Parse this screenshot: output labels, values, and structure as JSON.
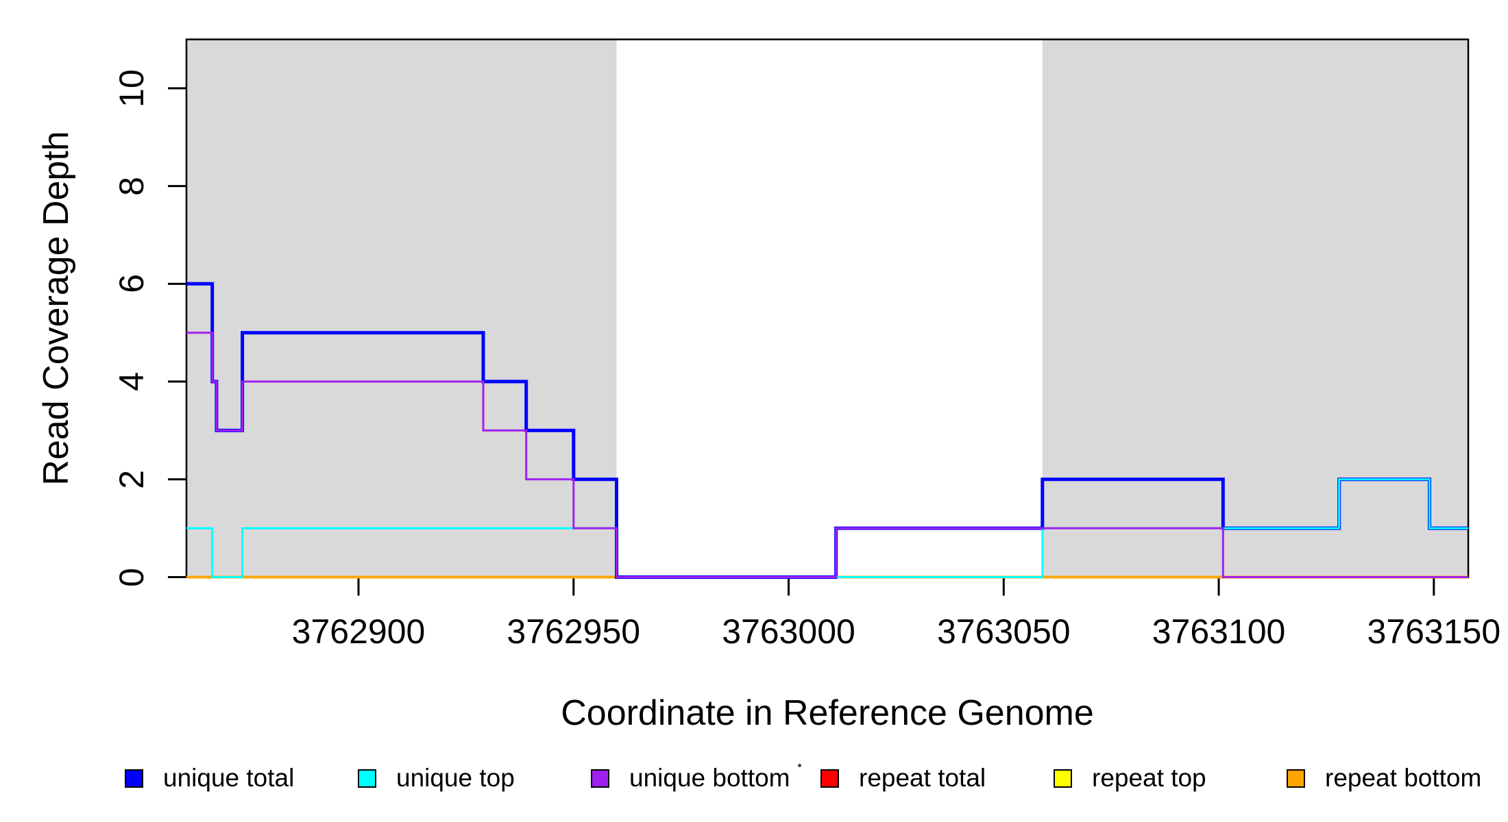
{
  "chart_data": {
    "type": "line",
    "subtype": "step-coverage-plot",
    "title": "",
    "xlabel": "Coordinate in Reference Genome",
    "ylabel": "Read Coverage Depth",
    "xlim": [
      3762860,
      3763158
    ],
    "ylim": [
      0,
      11
    ],
    "x_ticks": [
      3762900,
      3762950,
      3763000,
      3763050,
      3763100,
      3763150
    ],
    "x_tick_labels": [
      "3762900",
      "3762950",
      "3763000",
      "3763050",
      "3763100",
      "3763150"
    ],
    "y_ticks": [
      0,
      2,
      4,
      6,
      8,
      10
    ],
    "y_tick_labels": [
      "0",
      "2",
      "4",
      "6",
      "8",
      "10"
    ],
    "grid": false,
    "plot_background": "#ffffff",
    "box_color": "#000000",
    "shaded_regions": [
      {
        "x0": 3762860,
        "x1": 3762960,
        "color": "#D9D9D9"
      },
      {
        "x0": 3763059,
        "x1": 3763158,
        "color": "#D9D9D9"
      }
    ],
    "series": [
      {
        "name": "repeat total",
        "color": "#FF0000",
        "line_width": 2.5,
        "x_breaks": [
          3762860,
          3763158
        ],
        "levels": [
          0
        ]
      },
      {
        "name": "repeat top",
        "color": "#FFFF00",
        "line_width": 2.5,
        "x_breaks": [
          3762860,
          3763158
        ],
        "levels": [
          0
        ]
      },
      {
        "name": "repeat bottom",
        "color": "#FFA500",
        "line_width": 4,
        "x_breaks": [
          3762860,
          3763158
        ],
        "levels": [
          0
        ]
      },
      {
        "name": "unique total",
        "color": "#0000FF",
        "line_width": 5,
        "x_breaks": [
          3762860,
          3762866,
          3762867,
          3762873,
          3762929,
          3762939,
          3762950,
          3762960,
          3763011,
          3763059,
          3763101,
          3763128,
          3763149,
          3763158
        ],
        "levels": [
          6,
          4,
          3,
          5,
          4,
          3,
          2,
          0,
          1,
          2,
          1,
          2,
          1
        ]
      },
      {
        "name": "unique top",
        "color": "#00FFFF",
        "line_width": 3,
        "x_breaks": [
          3762860,
          3762866,
          3762873,
          3762960,
          3763059,
          3763128,
          3763149,
          3763158
        ],
        "levels": [
          1,
          0,
          1,
          0,
          1,
          2,
          1
        ]
      },
      {
        "name": "unique bottom",
        "color": "#A020F0",
        "line_width": 3,
        "x_breaks": [
          3762860,
          3762866,
          3762867,
          3762873,
          3762929,
          3762939,
          3762950,
          3762960,
          3763011,
          3763101,
          3763158
        ],
        "levels": [
          5,
          4,
          3,
          4,
          3,
          2,
          1,
          0,
          1,
          0
        ]
      }
    ],
    "legend_position": "bottom",
    "legend": [
      {
        "label": "unique total",
        "color": "#0000FF"
      },
      {
        "label": "unique top",
        "color": "#00FFFF"
      },
      {
        "label": "unique bottom",
        "color": "#A020F0"
      },
      {
        "label": "repeat total",
        "color": "#FF0000"
      },
      {
        "label": "repeat top",
        "color": "#FFFF00"
      },
      {
        "label": "repeat bottom",
        "color": "#FFA500"
      }
    ]
  }
}
